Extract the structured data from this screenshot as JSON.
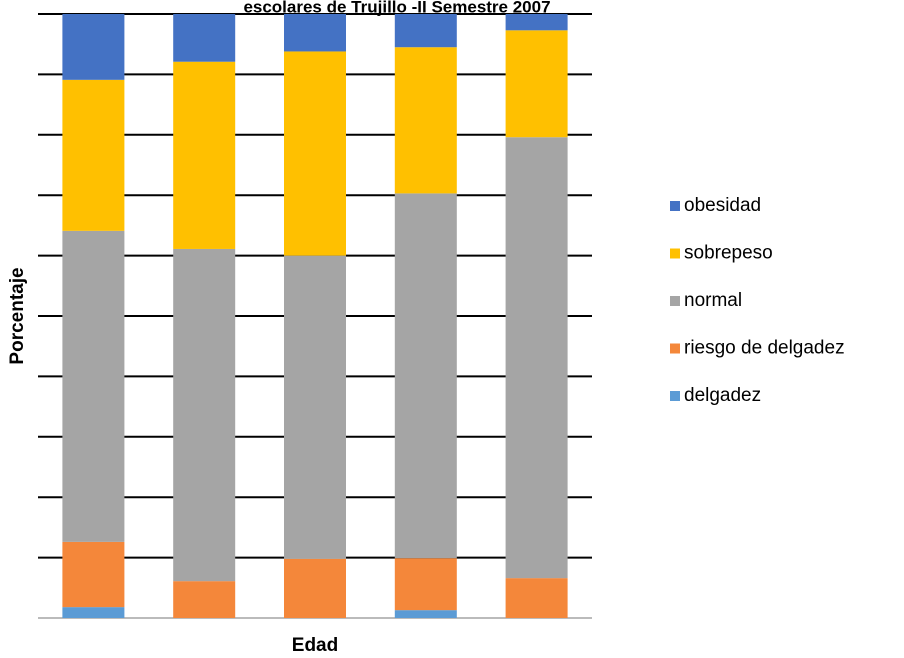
{
  "chart_data": {
    "type": "stacked_bar",
    "title": "escolares de Trujillo -II Semestre 2007",
    "xlabel": "Edad",
    "ylabel": "Porcentaje",
    "categories": [
      null,
      null,
      null,
      null,
      null
    ],
    "series": [
      {
        "name": "delgadez",
        "color": "#5b9bd5",
        "values": [
          1.8,
          0,
          0,
          1.3,
          0
        ]
      },
      {
        "name": "riesgo de delgadez",
        "color": "#f4873a",
        "values": [
          10.8,
          6.1,
          9.8,
          8.6,
          6.6
        ]
      },
      {
        "name": "normal",
        "color": "#a5a5a5",
        "values": [
          51.5,
          55.0,
          50.2,
          60.4,
          73.0
        ]
      },
      {
        "name": "sobrepeso",
        "color": "#ffc000",
        "values": [
          25.0,
          31.0,
          33.8,
          24.2,
          17.7
        ]
      },
      {
        "name": "obesidad",
        "color": "#4472c4",
        "values": [
          10.9,
          7.9,
          6.2,
          5.5,
          2.7
        ]
      }
    ],
    "ylim": [
      0,
      100
    ],
    "yticks": [
      0,
      10,
      20,
      30,
      40,
      50,
      60,
      70,
      80,
      90,
      100
    ],
    "grid": true,
    "legend": "right"
  }
}
